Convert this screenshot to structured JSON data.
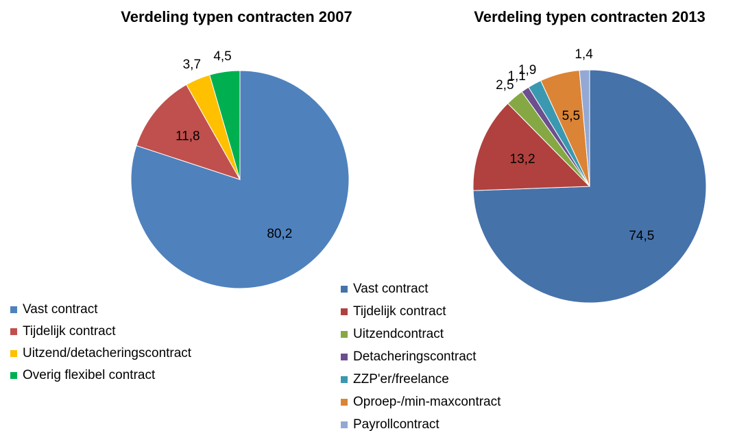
{
  "chart_data": [
    {
      "type": "pie",
      "title": "Verdeling typen contracten 2007",
      "categories": [
        "Vast contract",
        "Tijdelijk contract",
        "Uitzend/detacheringscontract",
        "Overig flexibel contract"
      ],
      "values": [
        80.2,
        11.8,
        3.7,
        4.5
      ],
      "value_labels": [
        "80,2",
        "11,8",
        "3,7",
        "4,5"
      ],
      "colors": [
        "#4f81bd",
        "#c0504d",
        "#ffc000",
        "#00b050"
      ],
      "legend": "bottom-left"
    },
    {
      "type": "pie",
      "title": "Verdeling typen contracten 2013",
      "categories": [
        "Vast contract",
        "Tijdelijk contract",
        "Uitzendcontract",
        "Detacheringscontract",
        "ZZP'er/freelance",
        "Oproep-/min-maxcontract",
        "Payrollcontract"
      ],
      "values": [
        74.5,
        13.2,
        2.5,
        1.1,
        1.9,
        5.5,
        1.4
      ],
      "value_labels": [
        "74,5",
        "13,2",
        "2,5",
        "1,1",
        "1,9",
        "5,5",
        "1,4"
      ],
      "colors": [
        "#4672aa",
        "#b0413e",
        "#86a844",
        "#6b4f8e",
        "#3a99b0",
        "#db8436",
        "#93a9d4"
      ],
      "legend": "bottom-left"
    }
  ]
}
